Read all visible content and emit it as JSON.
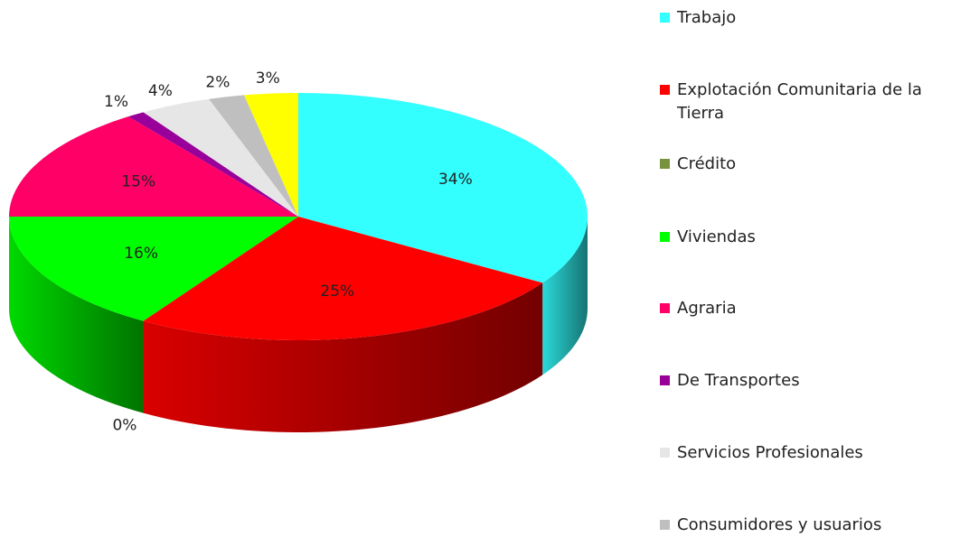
{
  "chart_data": {
    "type": "pie",
    "categories": [
      "Trabajo",
      "Explotación Comunitaria de la Tierra",
      "Crédito",
      "Viviendas",
      "Agraria",
      "De Transportes",
      "Servicios Profesionales",
      "Consumidores y usuarios",
      null
    ],
    "values": [
      34,
      25,
      0,
      16,
      15,
      1,
      4,
      2,
      3
    ],
    "value_labels": [
      "34%",
      "25%",
      "0%",
      "16%",
      "15%",
      "1%",
      "4%",
      "2%",
      "3%"
    ],
    "colors": [
      "#33ffff",
      "#ff0000",
      "#77933c",
      "#00ff00",
      "#ff0066",
      "#990099",
      "#e6e6e6",
      "#bfbfbf",
      "#ffff00"
    ],
    "legend": "right"
  }
}
